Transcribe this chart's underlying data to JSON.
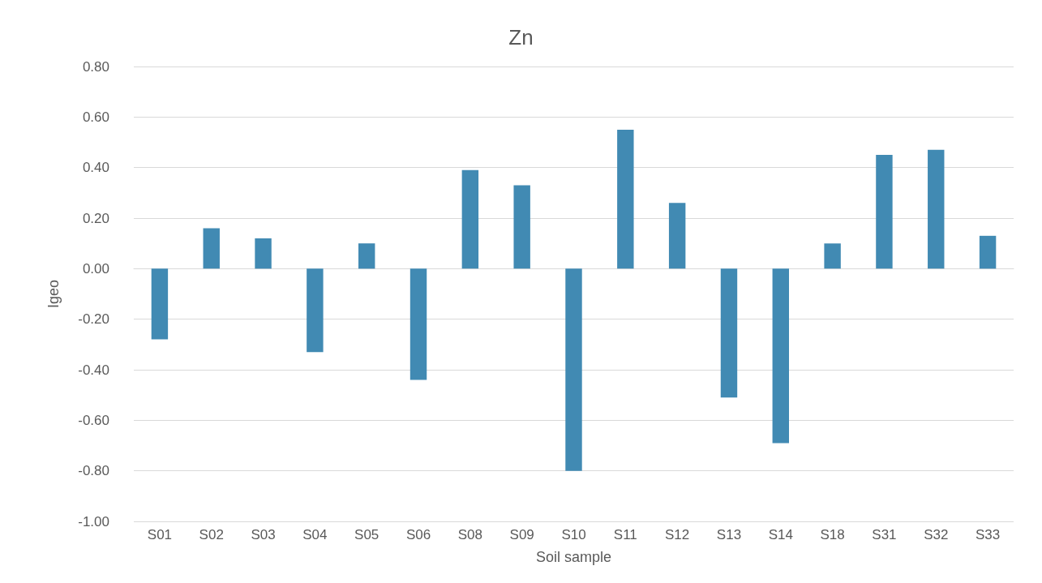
{
  "chart_data": {
    "type": "bar",
    "title": "Zn",
    "xlabel": "Soil sample",
    "ylabel": "Igeo",
    "categories": [
      "S01",
      "S02",
      "S03",
      "S04",
      "S05",
      "S06",
      "S08",
      "S09",
      "S10",
      "S11",
      "S12",
      "S13",
      "S14",
      "S18",
      "S31",
      "S32",
      "S33"
    ],
    "values": [
      -0.28,
      0.16,
      0.12,
      -0.33,
      0.1,
      -0.44,
      0.39,
      0.33,
      -0.8,
      0.55,
      0.26,
      -0.51,
      -0.69,
      0.1,
      0.45,
      0.47,
      0.13
    ],
    "color": "#418ab3",
    "ylim": [
      -1.0,
      0.8
    ],
    "yticks": [
      {
        "value": -1.0,
        "label": "-1.00"
      },
      {
        "value": -0.8,
        "label": "-0.80"
      },
      {
        "value": -0.6,
        "label": "-0.60"
      },
      {
        "value": -0.4,
        "label": "-0.40"
      },
      {
        "value": -0.2,
        "label": "-0.20"
      },
      {
        "value": 0,
        "label": "0.00"
      },
      {
        "value": 0.2,
        "label": "0.20"
      },
      {
        "value": 0.4,
        "label": "0.40"
      },
      {
        "value": 0.6,
        "label": "0.60"
      },
      {
        "value": 0.8,
        "label": "0.80"
      }
    ],
    "grid": "y"
  }
}
